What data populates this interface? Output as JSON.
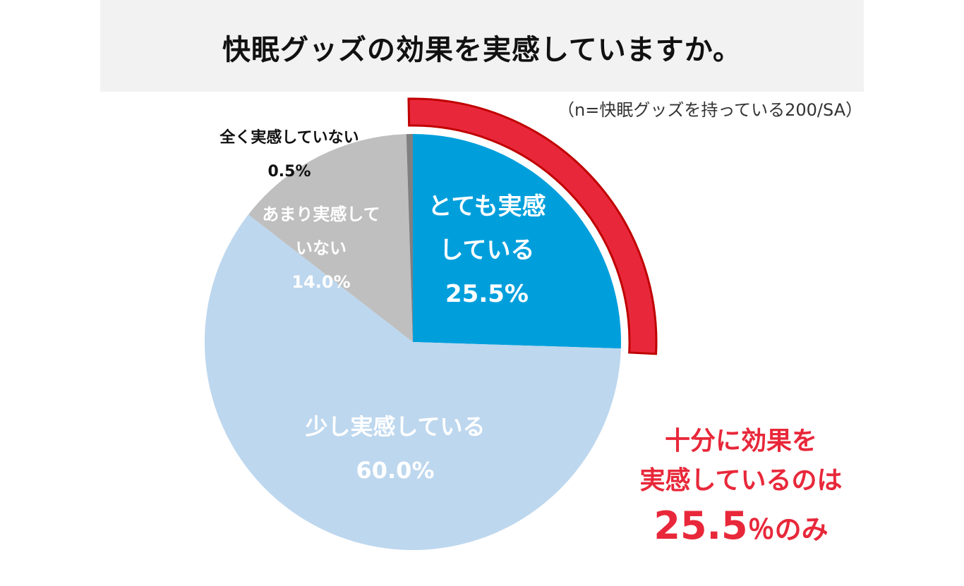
{
  "header": {
    "title": "快眠グッズの効果を実感していますか。",
    "note": "（n=快眠グッズを持っている200/SA）"
  },
  "chart_data": {
    "type": "pie",
    "title": "快眠グッズの効果を実感していますか。",
    "slices": [
      {
        "line1": "とても実感",
        "line2": "している",
        "label": "とても実感している",
        "value": 25.5,
        "value_label": "25.5%",
        "color": "#009fdc"
      },
      {
        "line1": "少し実感している",
        "label": "少し実感している",
        "value": 60.0,
        "value_label": "60.0%",
        "color": "#bdd7ee"
      },
      {
        "line1": "あまり実感して",
        "line2": "いない",
        "label": "あまり実感していない",
        "value": 14.0,
        "value_label": "14.0%",
        "color": "#bfbfbf"
      },
      {
        "line1": "全く実感していない",
        "label": "全く実感していない",
        "value": 0.5,
        "value_label": "0.5%",
        "color": "#808080"
      }
    ],
    "highlight": {
      "slice": "とても実感している",
      "color": "#e8283a",
      "stroke": "#c00000"
    }
  },
  "callout": {
    "line1": "十分に効果を",
    "line2": "実感しているのは",
    "number": "25.5",
    "suffix": "％のみ",
    "color": "#e8283a"
  }
}
